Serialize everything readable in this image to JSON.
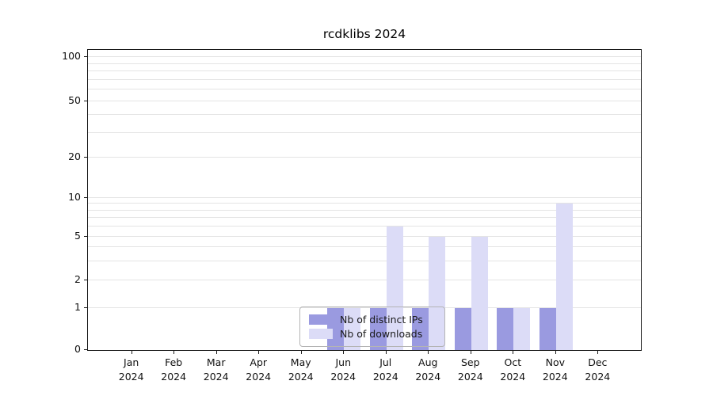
{
  "chart_data": {
    "type": "bar",
    "title": "rcdklibs 2024",
    "categories": [
      "Jan",
      "Feb",
      "Mar",
      "Apr",
      "May",
      "Jun",
      "Jul",
      "Aug",
      "Sep",
      "Oct",
      "Nov",
      "Dec"
    ],
    "year": "2024",
    "series": [
      {
        "name": "Nb of distinct IPs",
        "color": "#9a9ae0",
        "values": [
          0,
          0,
          0,
          0,
          0,
          1,
          1,
          1,
          1,
          1,
          1,
          0
        ]
      },
      {
        "name": "Nb of downloads",
        "color": "#dcdcf7",
        "values": [
          0,
          0,
          0,
          0,
          0,
          1,
          6,
          5,
          5,
          1,
          9,
          0
        ]
      }
    ],
    "yticks": [
      0,
      1,
      2,
      5,
      10,
      20,
      50,
      100
    ],
    "ylim": [
      0,
      100
    ],
    "yscale": "log-like with zero baseline",
    "grid": "horizontal minor gridlines at 1-9, 10-90, 100",
    "legend_position": "lower center"
  }
}
